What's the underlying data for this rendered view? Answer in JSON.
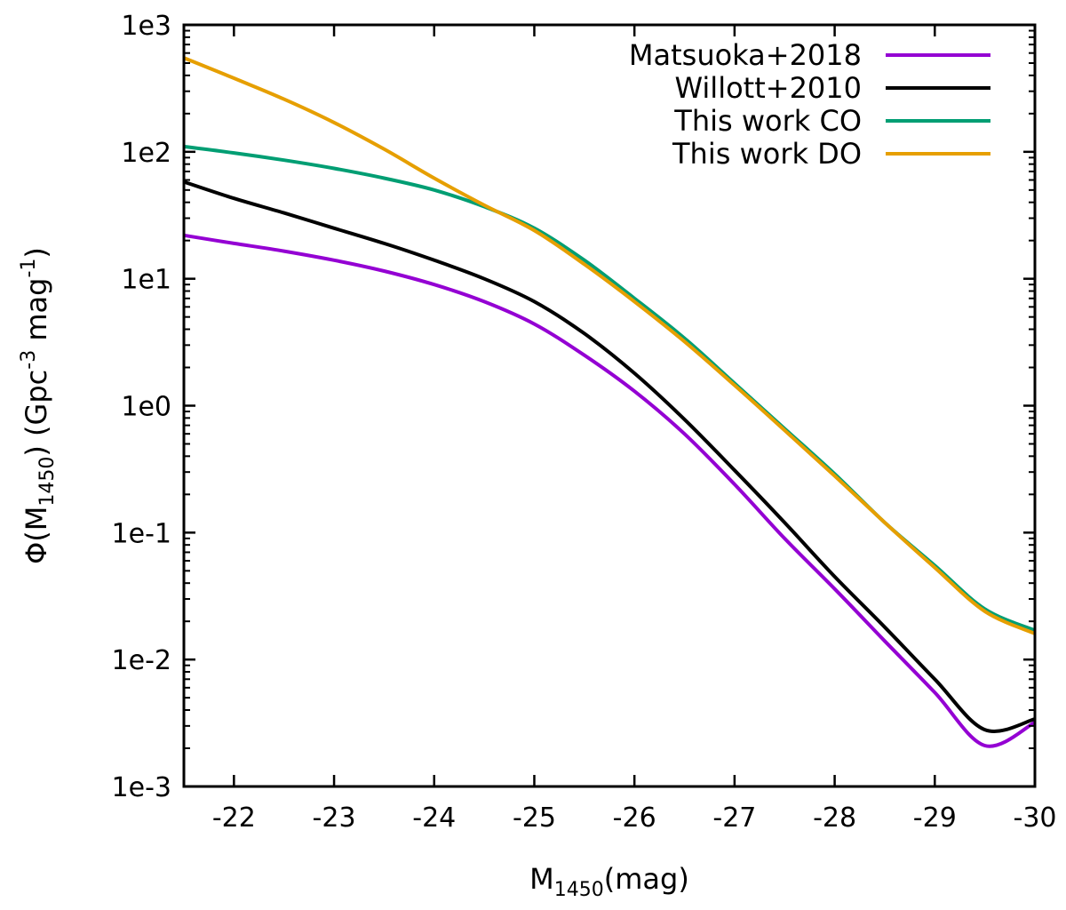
{
  "chart_data": {
    "type": "line",
    "xlabel": {
      "main": "M",
      "sub": "1450",
      "tail": "(mag)"
    },
    "ylabel": {
      "pre": "Φ(M",
      "sub": "1450",
      "mid": ") (Gpc",
      "sup1": "-3",
      "mid2": " mag",
      "sup2": "-1",
      "post": ")"
    },
    "xlim": [
      -21.5,
      -30
    ],
    "ylim": [
      0.001,
      1000
    ],
    "yscale": "log",
    "xticks": [
      -22,
      -23,
      -24,
      -25,
      -26,
      -27,
      -28,
      -29,
      -30
    ],
    "xtick_labels": [
      "-22",
      "-23",
      "-24",
      "-25",
      "-26",
      "-27",
      "-28",
      "-29",
      "-30"
    ],
    "yticks": [
      1000,
      100,
      10,
      1,
      0.1,
      0.01,
      0.001
    ],
    "ytick_labels": [
      "1e3",
      "1e2",
      "1e1",
      "1e0",
      "1e-1",
      "1e-2",
      "1e-3"
    ],
    "grid": false,
    "legend_position": "top-right",
    "series": [
      {
        "name": "Matsuoka+2018",
        "color": "#9400d3",
        "x": [
          -21.5,
          -22,
          -22.5,
          -23,
          -23.5,
          -24,
          -24.5,
          -25,
          -25.5,
          -26,
          -26.5,
          -27,
          -27.5,
          -28,
          -28.5,
          -29,
          -29.5,
          -30
        ],
        "y": [
          22,
          19,
          16.5,
          14,
          11.5,
          9,
          6.6,
          4.4,
          2.5,
          1.3,
          0.6,
          0.24,
          0.09,
          0.036,
          0.014,
          0.0055,
          0.0021,
          0.0032
        ]
      },
      {
        "name": "Willott+2010",
        "color": "#000000",
        "x": [
          -21.5,
          -22,
          -22.5,
          -23,
          -23.5,
          -24,
          -24.5,
          -25,
          -25.5,
          -26,
          -26.5,
          -27,
          -27.5,
          -28,
          -28.5,
          -29,
          -29.5,
          -30
        ],
        "y": [
          58,
          43,
          33,
          25,
          19,
          14,
          10,
          6.6,
          3.7,
          1.8,
          0.78,
          0.31,
          0.12,
          0.045,
          0.018,
          0.007,
          0.0028,
          0.0034
        ]
      },
      {
        "name": "This work CO",
        "color": "#009e73",
        "x": [
          -21.5,
          -22,
          -22.5,
          -23,
          -23.5,
          -24,
          -24.5,
          -25,
          -25.5,
          -26,
          -26.5,
          -27,
          -27.5,
          -28,
          -28.5,
          -29,
          -29.5,
          -30
        ],
        "y": [
          110,
          98,
          86,
          74,
          62,
          50,
          37,
          25,
          14,
          7,
          3.4,
          1.5,
          0.66,
          0.29,
          0.12,
          0.055,
          0.025,
          0.017
        ]
      },
      {
        "name": "This work DO",
        "color": "#e69f00",
        "x": [
          -21.5,
          -22,
          -22.5,
          -23,
          -23.5,
          -24,
          -24.5,
          -25,
          -25.5,
          -26,
          -26.5,
          -27,
          -27.5,
          -28,
          -28.5,
          -29,
          -29.5,
          -30
        ],
        "y": [
          550,
          380,
          260,
          170,
          105,
          62,
          38,
          24,
          13,
          6.6,
          3.2,
          1.45,
          0.64,
          0.28,
          0.12,
          0.053,
          0.024,
          0.016
        ]
      }
    ]
  }
}
